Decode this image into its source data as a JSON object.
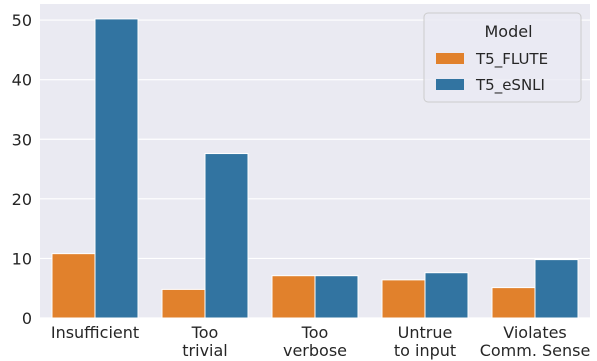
{
  "chart_data": {
    "type": "bar",
    "categories": [
      [
        "Insufficient"
      ],
      [
        "Too",
        "trivial"
      ],
      [
        "Too",
        "verbose"
      ],
      [
        "Untrue",
        "to input"
      ],
      [
        "Violates",
        "Comm. Sense"
      ]
    ],
    "series": [
      {
        "name": "T5_FLUTE",
        "color": "#e1812c",
        "values": [
          10.8,
          4.8,
          7.1,
          6.4,
          5.1
        ]
      },
      {
        "name": "T5_eSNLI",
        "color": "#3274a1",
        "values": [
          50.2,
          27.6,
          7.1,
          7.6,
          9.8
        ]
      }
    ],
    "yticks": [
      0,
      10,
      20,
      30,
      40,
      50
    ],
    "ylim": [
      0,
      52.7
    ],
    "grid": true,
    "legend": {
      "title": "Model",
      "position": "top-right"
    },
    "style": {
      "plot_bg": "#eaeaf2",
      "grid_color": "#ffffff"
    }
  }
}
